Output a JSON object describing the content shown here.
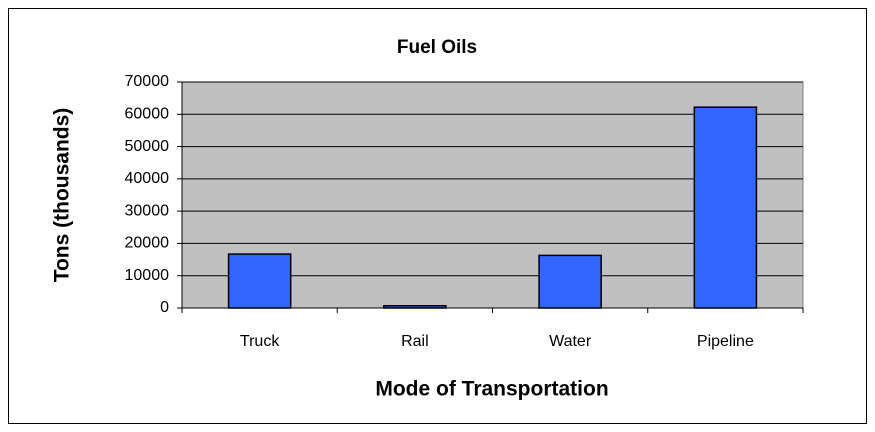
{
  "chart_data": {
    "type": "bar",
    "title": "Fuel Oils",
    "x_label": "Mode of Transportation",
    "y_label": "Tons (thousands)",
    "categories": [
      "Truck",
      "Rail",
      "Water",
      "Pipeline"
    ],
    "values": [
      16700,
      700,
      16300,
      62200
    ],
    "color": "#3366ff",
    "ylim": [
      0,
      70000
    ],
    "yticks": [
      0,
      10000,
      20000,
      30000,
      40000,
      50000,
      60000,
      70000
    ],
    "grid": true
  }
}
